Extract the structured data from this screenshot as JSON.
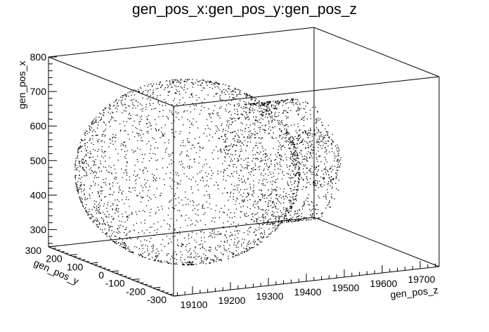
{
  "chart_data": {
    "type": "scatter",
    "title": "gen_pos_x:gen_pos_y:gen_pos_z",
    "axes": {
      "x": {
        "label": "gen_pos_x",
        "range": [
          250,
          800
        ],
        "ticks": [
          300,
          400,
          500,
          600,
          700,
          800
        ]
      },
      "y": {
        "label": "gen_pos_y",
        "range": [
          -300,
          300
        ],
        "ticks": [
          -300,
          -200,
          -100,
          0,
          100,
          200,
          300
        ]
      },
      "z": {
        "label": "gen_pos_z",
        "range": [
          19050,
          19750
        ],
        "ticks": [
          19100,
          19200,
          19300,
          19400,
          19500,
          19600,
          19700
        ]
      }
    },
    "shapes": [
      {
        "kind": "sphere",
        "center": {
          "x": 515,
          "y": 0,
          "z": 19250
        },
        "radius": 260,
        "points": 2600
      },
      {
        "kind": "cylinder-shell",
        "x_center": 515,
        "y_center": 0,
        "z_range": [
          19430,
          19560
        ],
        "radius": 170,
        "points": 900
      },
      {
        "kind": "cap",
        "center": {
          "x": 515,
          "y": 0,
          "z": 19590
        },
        "radius": 80,
        "points": 250
      }
    ],
    "marker_color": "#000000",
    "grid": false
  }
}
